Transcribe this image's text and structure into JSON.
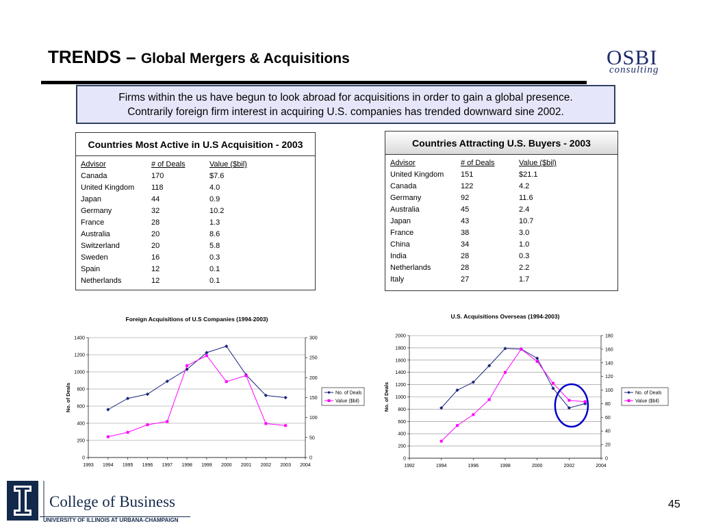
{
  "header": {
    "title_main": "TRENDS –",
    "title_sub": "Global Mergers & Acquisitions",
    "logo_name": "OSBI",
    "logo_sub": "consulting"
  },
  "callout": {
    "line1": "Firms within the us have begun to look abroad for acquisitions in order to gain a global presence.",
    "line2": "Contrarily foreign firm interest in acquiring U.S. companies has trended downward sine 2002."
  },
  "table_left": {
    "title": "Countries Most Active in U.S Acquisition - 2003",
    "headers": [
      "Advisor",
      "# of Deals",
      "Value ($bil)"
    ],
    "rows": [
      [
        "Canada",
        "170",
        "$7.6"
      ],
      [
        "United Kingdom",
        "118",
        "4.0"
      ],
      [
        "Japan",
        "44",
        "0.9"
      ],
      [
        "Germany",
        "32",
        "10.2"
      ],
      [
        "France",
        "28",
        "1.3"
      ],
      [
        "Australia",
        "20",
        "8.6"
      ],
      [
        "Switzerland",
        "20",
        "5.8"
      ],
      [
        "Sweden",
        "16",
        "0.3"
      ],
      [
        "Spain",
        "12",
        "0.1"
      ],
      [
        "Netherlands",
        "12",
        "0.1"
      ]
    ]
  },
  "table_right": {
    "title": "Countries Attracting U.S. Buyers - 2003",
    "headers": [
      "Advisor",
      "# of Deals",
      "Value ($bil)"
    ],
    "rows": [
      [
        "United Kingdom",
        "151",
        "$21.1"
      ],
      [
        "Canada",
        "122",
        "4.2"
      ],
      [
        "Germany",
        "92",
        "11.6"
      ],
      [
        "Australia",
        "45",
        "2.4"
      ],
      [
        "Japan",
        "43",
        "10.7"
      ],
      [
        "France",
        "38",
        "3.0"
      ],
      [
        "China",
        "34",
        "1.0"
      ],
      [
        "India",
        "28",
        "0.3"
      ],
      [
        "Netherlands",
        "28",
        "2.2"
      ],
      [
        "Italy",
        "27",
        "1.7"
      ]
    ]
  },
  "chart_data": [
    {
      "type": "line",
      "title": "Foreign Acquisitions of U.S Companies (1994-2003)",
      "ylabel": "No. of Deals",
      "xlabel": "",
      "xlim": [
        1993,
        2004
      ],
      "xticks": [
        1993,
        1994,
        1995,
        1996,
        1997,
        1998,
        1999,
        2000,
        2001,
        2002,
        2003,
        2004
      ],
      "ylim_left": [
        0,
        1400
      ],
      "yticks_left": [
        0,
        200,
        400,
        600,
        800,
        1000,
        1200,
        1400
      ],
      "ylim_right": [
        0,
        300
      ],
      "yticks_right": [
        0,
        50,
        100,
        150,
        200,
        250,
        300
      ],
      "grid": "horizontal",
      "legend": "right",
      "series": [
        {
          "name": "No. of Deals",
          "axis": "left",
          "color": "#1a237e",
          "marker": "diamond",
          "x": [
            1994,
            1995,
            1996,
            1997,
            1998,
            1999,
            2000,
            2001,
            2002,
            2003
          ],
          "values": [
            560,
            690,
            740,
            890,
            1030,
            1225,
            1300,
            965,
            725,
            700
          ]
        },
        {
          "name": "Value ($bil)",
          "axis": "right",
          "color": "#ff00ff",
          "marker": "square",
          "x": [
            1994,
            1995,
            1996,
            1997,
            1998,
            1999,
            2000,
            2001,
            2002,
            2003
          ],
          "values": [
            52,
            63,
            82,
            90,
            230,
            255,
            190,
            205,
            85,
            80
          ]
        }
      ]
    },
    {
      "type": "line",
      "title": "U.S. Acquisitions Overseas (1994-2003)",
      "ylabel": "No. of Deals",
      "xlabel": "",
      "xlim": [
        1992,
        2004
      ],
      "xticks": [
        1992,
        1994,
        1996,
        1998,
        2000,
        2002,
        2004
      ],
      "ylim_left": [
        0,
        2000
      ],
      "yticks_left": [
        0,
        200,
        400,
        600,
        800,
        1000,
        1200,
        1400,
        1600,
        1800,
        2000
      ],
      "ylim_right": [
        0,
        180
      ],
      "yticks_right": [
        0,
        20,
        40,
        60,
        80,
        100,
        120,
        140,
        160,
        180
      ],
      "grid": "horizontal",
      "legend": "right",
      "highlight_year": 2002,
      "series": [
        {
          "name": "No. of Deals",
          "axis": "left",
          "color": "#1a237e",
          "marker": "diamond",
          "x": [
            1994,
            1995,
            1996,
            1997,
            1998,
            1999,
            2000,
            2001,
            2002,
            2003
          ],
          "values": [
            820,
            1110,
            1240,
            1510,
            1790,
            1780,
            1630,
            1140,
            820,
            890
          ]
        },
        {
          "name": "Value ($bil)",
          "axis": "right",
          "color": "#ff00ff",
          "marker": "square",
          "x": [
            1994,
            1995,
            1996,
            1997,
            1998,
            1999,
            2000,
            2001,
            2002,
            2003
          ],
          "values": [
            25,
            48,
            64,
            86,
            126,
            160,
            142,
            110,
            85,
            83
          ]
        }
      ]
    }
  ],
  "footer": {
    "college": "College of Business",
    "university": "UNIVERSITY OF ILLINOIS AT URBANA-CHAMPAIGN",
    "page_number": "45"
  },
  "colors": {
    "callout_bg": "#e6e6fa",
    "deals_line": "#1a237e",
    "value_line": "#ff00ff",
    "highlight_circle": "#0000cc",
    "illinois_navy": "#13294b"
  }
}
